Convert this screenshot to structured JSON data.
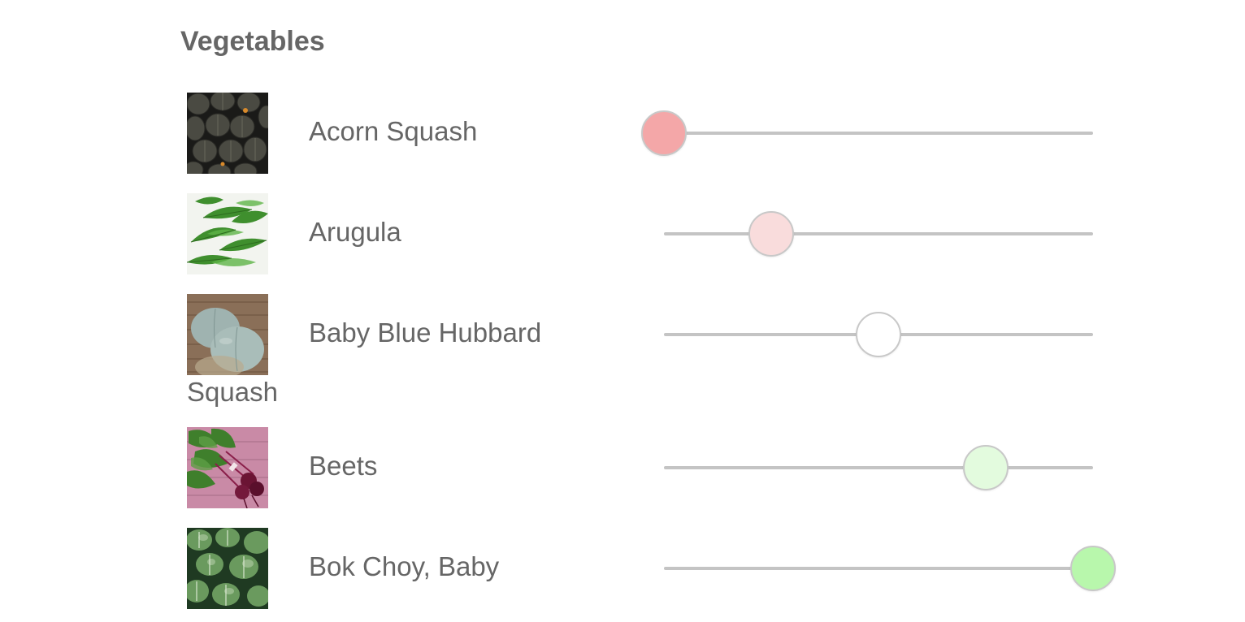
{
  "section": {
    "title": "Vegetables"
  },
  "items": [
    {
      "name": "Acorn Squash",
      "name_line2": "",
      "image_icon": "acorn-squash-photo",
      "slider_fraction": 0.0,
      "knob_color": "#f4a7a8"
    },
    {
      "name": "Arugula",
      "name_line2": "",
      "image_icon": "arugula-photo",
      "slider_fraction": 0.25,
      "knob_color": "#f9dcdc"
    },
    {
      "name": "Baby Blue Hubbard",
      "name_line2": "Squash",
      "image_icon": "blue-hubbard-squash-photo",
      "slider_fraction": 0.5,
      "knob_color": "#ffffff"
    },
    {
      "name": "Beets",
      "name_line2": "",
      "image_icon": "beets-photo",
      "slider_fraction": 0.75,
      "knob_color": "#e3fbde"
    },
    {
      "name": "Bok Choy, Baby",
      "name_line2": "",
      "image_icon": "bok-choy-photo",
      "slider_fraction": 1.0,
      "knob_color": "#b8f7ac"
    }
  ]
}
